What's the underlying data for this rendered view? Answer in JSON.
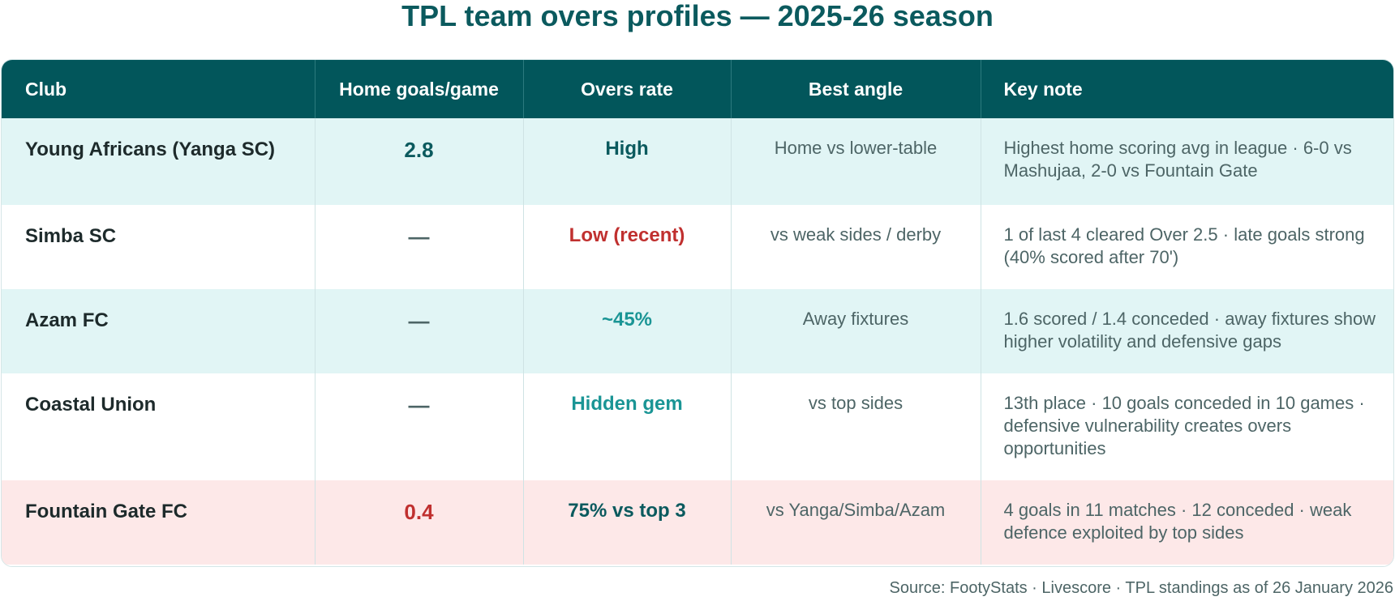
{
  "title": "TPL team overs profiles — 2025-26 season",
  "table": {
    "headers": {
      "club": "Club",
      "home_goals": "Home goals/game",
      "overs_rate": "Overs rate",
      "best_angle": "Best angle",
      "key_note": "Key note"
    },
    "rows": [
      {
        "club": "Young Africans (Yanga SC)",
        "home_goals": "2.8",
        "overs_rate": "High",
        "best_angle": "Home vs lower-table",
        "key_note": "Highest home scoring avg in league · 6-0 vs Mashujaa, 2-0 vs Fountain Gate"
      },
      {
        "club": "Simba SC",
        "home_goals": "—",
        "overs_rate": "Low (recent)",
        "best_angle": "vs weak sides / derby",
        "key_note": "1 of last 4 cleared Over 2.5 · late goals strong (40% scored after 70')"
      },
      {
        "club": "Azam FC",
        "home_goals": "—",
        "overs_rate": "~45%",
        "best_angle": "Away fixtures",
        "key_note": "1.6 scored / 1.4 conceded · away fixtures show higher volatility and defensive gaps"
      },
      {
        "club": "Coastal Union",
        "home_goals": "—",
        "overs_rate": "Hidden gem",
        "best_angle": "vs top sides",
        "key_note": "13th place · 10 goals conceded in 10 games · defensive vulnerability creates overs opportunities"
      },
      {
        "club": "Fountain Gate FC",
        "home_goals": "0.4",
        "overs_rate": "75% vs top 3",
        "best_angle": "vs Yanga/Simba/Azam",
        "key_note": "4 goals in 11 matches · 12 conceded · weak defence exploited by top sides"
      }
    ]
  },
  "source": "Source: FootyStats · Livescore · TPL standings as of 26 January 2026",
  "colors": {
    "header_bg": "#02565b",
    "accent_teal": "#0b5a5e",
    "rate_high": "#0b5a5e",
    "rate_low": "#c0302f",
    "rate_mid": "#1a9595",
    "goals_high": "#0b5a5e",
    "goals_low": "#c0302f",
    "goals_none": "#4d6566",
    "row_teal": "#e1f5f5",
    "row_pink": "#fde8e8"
  }
}
